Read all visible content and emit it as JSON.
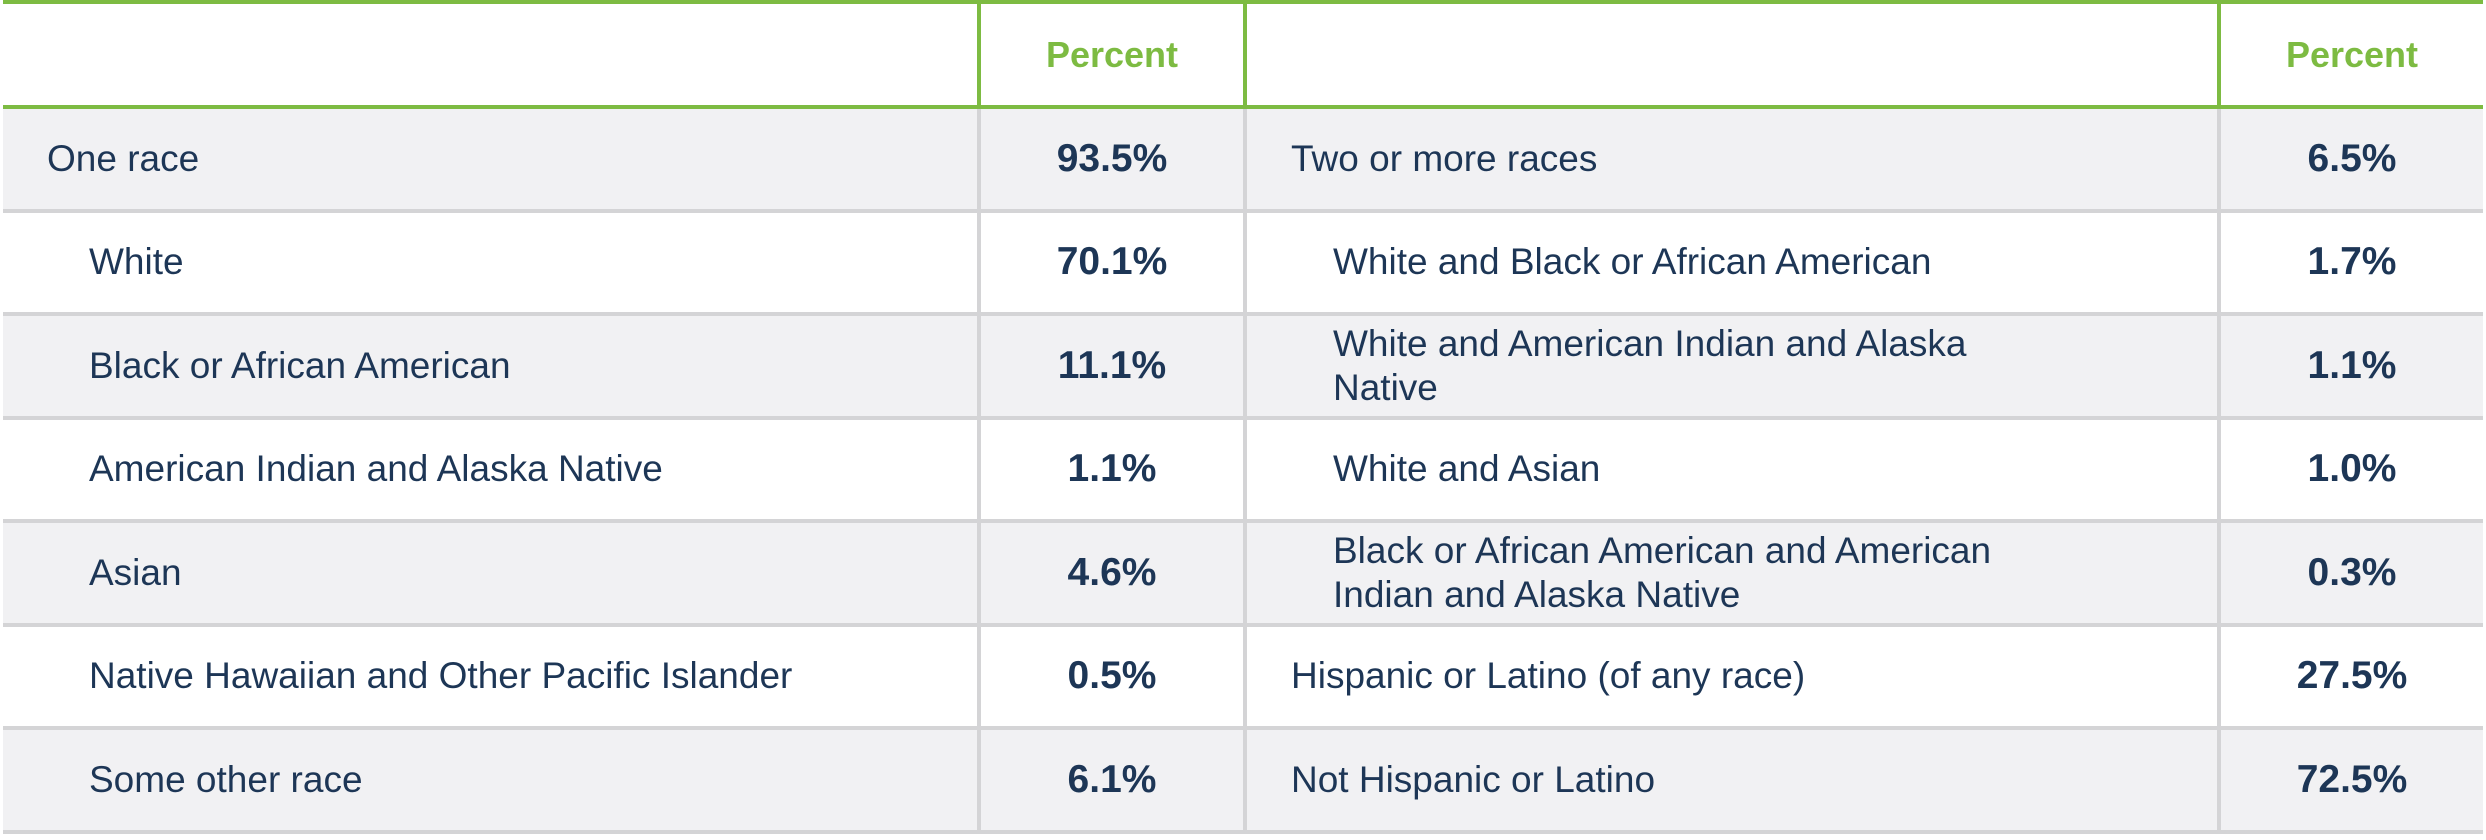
{
  "table": {
    "header": {
      "percent_left": "Percent",
      "percent_right": "Percent"
    },
    "rows": [
      {
        "left_label": "One race",
        "left_indent": false,
        "left_value": "93.5%",
        "right_label": "Two or more races",
        "right_indent": false,
        "right_value": "6.5%"
      },
      {
        "left_label": "White",
        "left_indent": true,
        "left_value": "70.1%",
        "right_label": "White and Black or African American",
        "right_indent": true,
        "right_value": "1.7%"
      },
      {
        "left_label": "Black or African American",
        "left_indent": true,
        "left_value": "11.1%",
        "right_label": "White and American Indian and Alaska Native",
        "right_indent": true,
        "right_value": "1.1%"
      },
      {
        "left_label": "American Indian and Alaska Native",
        "left_indent": true,
        "left_value": "1.1%",
        "right_label": "White and Asian",
        "right_indent": true,
        "right_value": "1.0%"
      },
      {
        "left_label": "Asian",
        "left_indent": true,
        "left_value": "4.6%",
        "right_label": "Black or African American and American Indian and Alaska Native",
        "right_indent": true,
        "right_value": "0.3%"
      },
      {
        "left_label": "Native Hawaiian and Other Pacific Islander",
        "left_indent": true,
        "left_value": "0.5%",
        "right_label": "Hispanic or Latino (of any race)",
        "right_indent": false,
        "right_value": "27.5%"
      },
      {
        "left_label": "Some other race",
        "left_indent": true,
        "left_value": "6.1%",
        "right_label": "Not Hispanic or Latino",
        "right_indent": false,
        "right_value": "72.5%"
      }
    ]
  }
}
